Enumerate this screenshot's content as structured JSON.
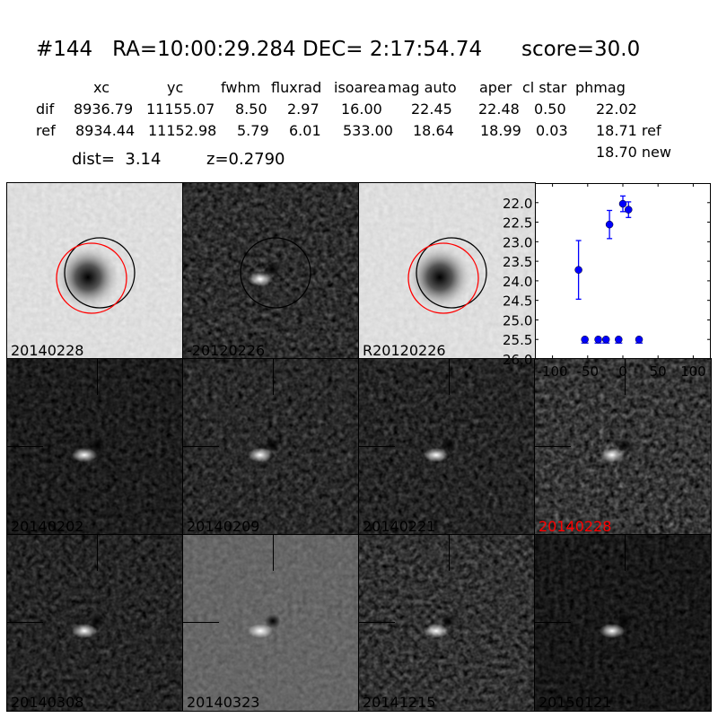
{
  "header": {
    "title": "#144   RA=10:00:29.284 DEC= 2:17:54.74      score=30.0"
  },
  "table": {
    "columns": [
      "xc",
      "yc",
      "fwhm",
      "fluxrad",
      "isoarea",
      "mag auto",
      "aper",
      "cl star",
      "phmag"
    ],
    "rows": [
      {
        "label": "dif",
        "values": [
          "8936.79",
          "11155.07",
          "8.50",
          "2.97",
          "16.00",
          "22.45",
          "22.48",
          "0.50",
          "22.02"
        ]
      },
      {
        "label": "ref",
        "values": [
          "8934.44",
          "11152.98",
          "5.79",
          "6.01",
          "533.00",
          "18.64",
          "18.99",
          "0.03",
          "18.71 ref"
        ]
      }
    ],
    "extra": "18.70 new",
    "dist": "dist=  3.14",
    "z": "z=0.2790"
  },
  "panels": [
    {
      "label": "20140228",
      "kind": "new",
      "circles": true
    },
    {
      "label": "-20120226",
      "kind": "diff",
      "circles": true
    },
    {
      "label": "R20120226",
      "kind": "ref",
      "circles": true
    },
    {
      "label": "20140202",
      "kind": "stamp"
    },
    {
      "label": "20140209",
      "kind": "stamp"
    },
    {
      "label": "20140221",
      "kind": "stamp"
    },
    {
      "label": "20140228",
      "kind": "stamp",
      "highlight": "#ff0000"
    },
    {
      "label": "20140308",
      "kind": "stamp"
    },
    {
      "label": "20140323",
      "kind": "stamp"
    },
    {
      "label": "20141215",
      "kind": "stamp"
    },
    {
      "label": "20150121",
      "kind": "stamp"
    }
  ],
  "chart_data": {
    "type": "scatter",
    "xlim": [
      -125,
      125
    ],
    "ylim": [
      26.0,
      21.5
    ],
    "y_inverted": true,
    "xticks": [
      "-100",
      "-50",
      "0",
      "50",
      "100"
    ],
    "yticks": [
      "22.0",
      "22.5",
      "23.0",
      "23.5",
      "24.0",
      "24.5",
      "25.0",
      "25.5",
      "26.0"
    ],
    "color": "#0000ff",
    "points": [
      {
        "x": -63,
        "y": 23.72,
        "err": 0.75
      },
      {
        "x": -19,
        "y": 22.56,
        "err": 0.36
      },
      {
        "x": 0,
        "y": 22.03,
        "err": 0.2
      },
      {
        "x": 8,
        "y": 22.18,
        "err": 0.2
      }
    ],
    "limits": [
      {
        "x": -54,
        "y": 25.5
      },
      {
        "x": -35,
        "y": 25.5
      },
      {
        "x": -24,
        "y": 25.5
      },
      {
        "x": -6,
        "y": 25.5
      },
      {
        "x": 23,
        "y": 25.5
      }
    ]
  }
}
